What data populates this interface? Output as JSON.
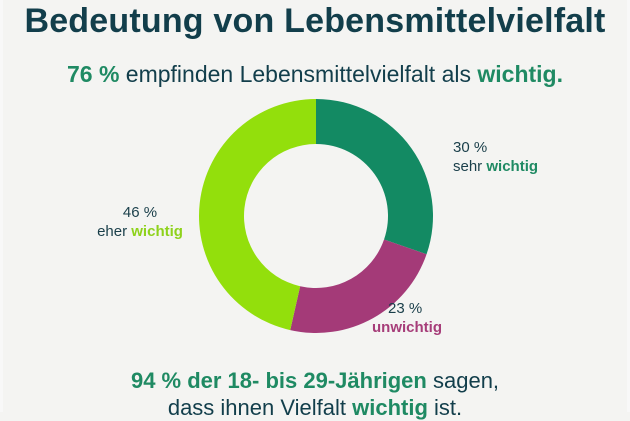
{
  "title": "Bedeutung von Lebensmittelvielfalt",
  "subtitle": {
    "pct": "76 %",
    "text": "empfinden Lebensmittelvielfalt als",
    "highlight": "wichtig."
  },
  "footer": {
    "line1_pct": "94 % der 18- bis 29-Jährigen",
    "line1_rest": "sagen,",
    "line2_pre": "dass ihnen Vielfalt",
    "line2_highlight": "wichtig",
    "line2_post": "ist."
  },
  "colors": {
    "sehr_wichtig": "#138a63",
    "unwichtig": "#a43a78",
    "eher_wichtig": "#93df0c"
  },
  "chart_data": {
    "type": "pie",
    "donut": true,
    "slices": [
      {
        "label_pct": "30 %",
        "label_pre": "sehr",
        "label_word": "wichtig",
        "value": 30,
        "color": "#138a63"
      },
      {
        "label_pct": "23 %",
        "label_pre": "",
        "label_word": "unwichtig",
        "value": 23,
        "color": "#a43a78"
      },
      {
        "label_pct": "46 %",
        "label_pre": "eher",
        "label_word": "wichtig",
        "value": 46,
        "color": "#93df0c"
      }
    ]
  }
}
